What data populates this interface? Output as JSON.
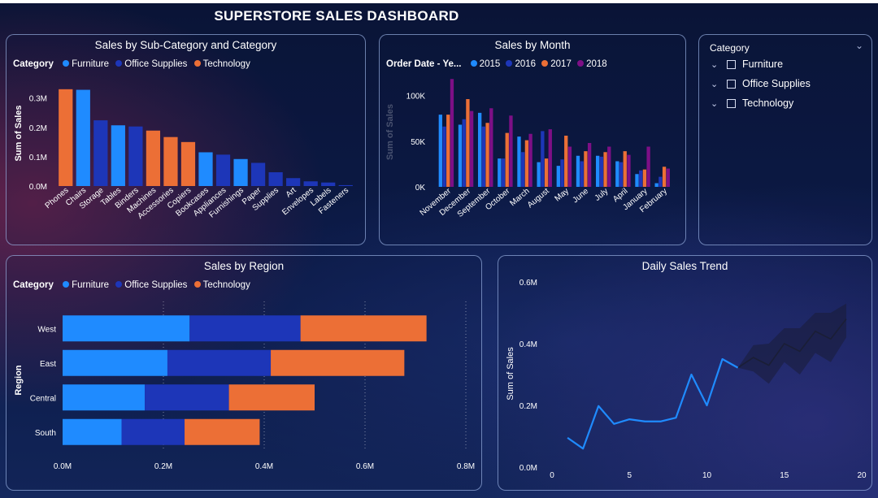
{
  "dashboard": {
    "title": "SUPERSTORE SALES DASHBOARD"
  },
  "colors": {
    "furniture": "#1f8bff",
    "office_supplies": "#1d36b8",
    "technology": "#ec6f36",
    "y2015": "#1f8bff",
    "y2016": "#1d36b8",
    "y2017": "#ec6f36",
    "y2018": "#7d0f86",
    "forecast": "#222a44"
  },
  "legend_category": {
    "label": "Category",
    "items": [
      "Furniture",
      "Office Supplies",
      "Technology"
    ]
  },
  "legend_year": {
    "label": "Order Date - Ye...",
    "items": [
      "2015",
      "2016",
      "2017",
      "2018"
    ]
  },
  "slicer": {
    "title": "Category",
    "options": [
      "Furniture",
      "Office Supplies",
      "Technology"
    ]
  },
  "chart_data": [
    {
      "type": "bar",
      "title": "Sales by Sub-Category and Category",
      "ylabel": "Sum of Sales",
      "xlabel": "",
      "ylim": [
        0,
        0.36
      ],
      "yticks": [
        "0.0M",
        "0.1M",
        "0.2M",
        "0.3M"
      ],
      "categories": [
        "Phones",
        "Chairs",
        "Storage",
        "Tables",
        "Binders",
        "Machines",
        "Accessories",
        "Copiers",
        "Bookcases",
        "Appliances",
        "Furnishings",
        "Paper",
        "Supplies",
        "Art",
        "Envelopes",
        "Labels",
        "Fasteners"
      ],
      "values": [
        0.33,
        0.328,
        0.224,
        0.207,
        0.203,
        0.189,
        0.167,
        0.15,
        0.115,
        0.107,
        0.092,
        0.079,
        0.047,
        0.027,
        0.016,
        0.012,
        0.003
      ],
      "category_of": [
        "Technology",
        "Furniture",
        "Office Supplies",
        "Furniture",
        "Office Supplies",
        "Technology",
        "Technology",
        "Technology",
        "Furniture",
        "Office Supplies",
        "Furniture",
        "Office Supplies",
        "Office Supplies",
        "Office Supplies",
        "Office Supplies",
        "Office Supplies",
        "Office Supplies"
      ]
    },
    {
      "type": "bar",
      "title": "Sales by Month",
      "ylabel": "Sum of Sales",
      "xlabel": "",
      "ylim": [
        0,
        120000
      ],
      "yticks": [
        "0K",
        "50K",
        "100K"
      ],
      "categories": [
        "November",
        "December",
        "September",
        "October",
        "March",
        "August",
        "May",
        "June",
        "July",
        "April",
        "January",
        "February"
      ],
      "series": [
        {
          "name": "2015",
          "values": [
            79000,
            68000,
            81000,
            31000,
            55000,
            27000,
            23000,
            34000,
            34000,
            28000,
            14000,
            4000
          ]
        },
        {
          "name": "2016",
          "values": [
            66000,
            74000,
            66000,
            31000,
            38000,
            61000,
            30000,
            28000,
            33000,
            27000,
            18000,
            11000
          ]
        },
        {
          "name": "2017",
          "values": [
            79000,
            96000,
            70000,
            59000,
            51000,
            31000,
            56000,
            39000,
            38000,
            39000,
            19000,
            22000
          ]
        },
        {
          "name": "2018",
          "values": [
            118000,
            83000,
            86000,
            78000,
            58000,
            63000,
            44000,
            48000,
            44000,
            35000,
            44000,
            20000
          ]
        }
      ]
    },
    {
      "type": "bar",
      "orientation": "horizontal",
      "stacked": true,
      "title": "Sales by Region",
      "ylabel": "Region",
      "xlabel": "",
      "xlim": [
        0,
        0.8
      ],
      "xticks": [
        "0.0M",
        "0.2M",
        "0.4M",
        "0.6M",
        "0.8M"
      ],
      "categories": [
        "West",
        "East",
        "Central",
        "South"
      ],
      "series": [
        {
          "name": "Furniture",
          "values": [
            0.252,
            0.208,
            0.163,
            0.117
          ]
        },
        {
          "name": "Office Supplies",
          "values": [
            0.22,
            0.205,
            0.167,
            0.125
          ]
        },
        {
          "name": "Technology",
          "values": [
            0.25,
            0.265,
            0.17,
            0.149
          ]
        }
      ]
    },
    {
      "type": "line",
      "title": "Daily Sales Trend",
      "ylabel": "Sum of Sales",
      "xlabel": "",
      "xlim": [
        -1,
        20
      ],
      "ylim": [
        0,
        0.6
      ],
      "xticks": [
        "0",
        "5",
        "10",
        "15",
        "20"
      ],
      "yticks": [
        "0.0M",
        "0.2M",
        "0.4M",
        "0.6M"
      ],
      "x": [
        1,
        2,
        3,
        4,
        5,
        6,
        7,
        8,
        9,
        10,
        11,
        12
      ],
      "y": [
        0.095,
        0.06,
        0.198,
        0.14,
        0.155,
        0.148,
        0.148,
        0.16,
        0.3,
        0.2,
        0.35,
        0.322
      ],
      "forecast_x": [
        12,
        13,
        14,
        15,
        16,
        17,
        18,
        19
      ],
      "forecast_y": [
        0.322,
        0.355,
        0.33,
        0.4,
        0.375,
        0.44,
        0.415,
        0.48
      ],
      "forecast_upper": [
        0.322,
        0.395,
        0.4,
        0.45,
        0.45,
        0.5,
        0.5,
        0.53
      ],
      "forecast_lower": [
        0.322,
        0.31,
        0.27,
        0.34,
        0.3,
        0.37,
        0.34,
        0.42
      ]
    }
  ]
}
